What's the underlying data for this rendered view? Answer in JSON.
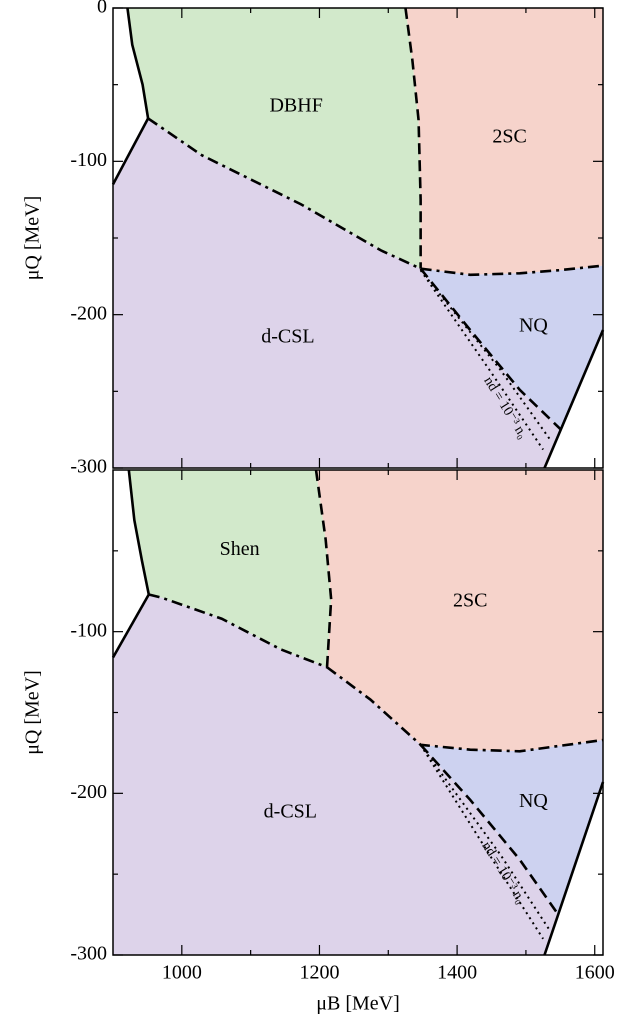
{
  "chart_data": [
    {
      "type": "phase",
      "ylabel": "μQ [MeV]",
      "xlim": [
        900,
        1612
      ],
      "ylim": [
        -300,
        0
      ],
      "xticks": [
        1000,
        1200,
        1400,
        1600
      ],
      "xminorticks": [
        1100,
        1300,
        1500
      ],
      "xtick_labels": false,
      "yticks": [
        0,
        -100,
        -200,
        -300
      ],
      "yminorticks": [
        -50,
        -150,
        -250
      ],
      "regions": [
        {
          "name": "DBHF",
          "color": "#d2e9cb",
          "x": [
            921,
            928,
            943,
            951,
            1029,
            1173,
            1289,
            1347,
            1347,
            1344,
            1335,
            1325
          ],
          "y": [
            0,
            -24,
            -50,
            -72,
            -96,
            -128,
            -158,
            -170,
            -125,
            -73,
            -34,
            0
          ]
        },
        {
          "name": "2SC",
          "color": "#f6d3cb",
          "x": [
            1325,
            1335,
            1344,
            1347,
            1347,
            1419,
            1491,
            1549,
            1612,
            1612
          ],
          "y": [
            0,
            -34,
            -73,
            -125,
            -170,
            -174,
            -173,
            -171,
            -168,
            0
          ]
        },
        {
          "name": "NQ",
          "color": "#cdd2f0",
          "x": [
            1347,
            1419,
            1491,
            1549,
            1612,
            1612,
            1551,
            1491,
            1419
          ],
          "y": [
            -170,
            -174,
            -173,
            -171,
            -168,
            -210,
            -275,
            -249,
            -210
          ]
        },
        {
          "name": "d-CSL",
          "color": "#ddd3ea",
          "x": [
            900,
            951,
            1029,
            1173,
            1289,
            1347,
            1419,
            1491,
            1551,
            1527,
            900
          ],
          "y": [
            -115,
            -72,
            -96,
            -128,
            -158,
            -170,
            -210,
            -249,
            -275,
            -300,
            -300
          ]
        }
      ],
      "lines": [
        {
          "style": "solid",
          "x": [
            921,
            928,
            943,
            951
          ],
          "y": [
            0,
            -24,
            -50,
            -72
          ]
        },
        {
          "style": "solid",
          "x": [
            951,
            900
          ],
          "y": [
            -72,
            -115
          ]
        },
        {
          "style": "dashdot",
          "x": [
            951,
            1029,
            1173,
            1289,
            1347
          ],
          "y": [
            -72,
            -96,
            -128,
            -158,
            -170
          ]
        },
        {
          "style": "dashed",
          "x": [
            1325,
            1335,
            1344,
            1347,
            1347
          ],
          "y": [
            0,
            -34,
            -73,
            -125,
            -170
          ]
        },
        {
          "style": "dashdot",
          "x": [
            1347,
            1419,
            1491,
            1549,
            1612
          ],
          "y": [
            -170,
            -174,
            -173,
            -171,
            -168
          ]
        },
        {
          "style": "dashed",
          "x": [
            1347,
            1419,
            1491,
            1551
          ],
          "y": [
            -170,
            -210,
            -249,
            -275
          ]
        },
        {
          "style": "dotted",
          "x": [
            1347,
            1463,
            1536
          ],
          "y": [
            -171,
            -236,
            -282
          ]
        },
        {
          "style": "dotted",
          "x": [
            1347,
            1450,
            1525
          ],
          "y": [
            -171,
            -238,
            -288
          ]
        },
        {
          "style": "solid",
          "x": [
            1527,
            1612
          ],
          "y": [
            -300,
            -210
          ]
        }
      ],
      "annotation": "nd = 10⁻³ n₀"
    },
    {
      "type": "phase",
      "ylabel": "μQ [MeV]",
      "xlabel": "μB [MeV]",
      "xlim": [
        900,
        1612
      ],
      "ylim": [
        -300,
        0
      ],
      "xticks": [
        1000,
        1200,
        1400,
        1600
      ],
      "xminorticks": [
        1100,
        1300,
        1500
      ],
      "xtick_labels": true,
      "yticks": [
        -100,
        -200,
        -300
      ],
      "yminorticks": [
        -50,
        -150,
        -250
      ],
      "regions": [
        {
          "name": "Shen",
          "color": "#d2e9cb",
          "x": [
            923,
            931,
            942,
            952,
            971,
            1058,
            1144,
            1211,
            1217,
            1209,
            1195
          ],
          "y": [
            0,
            -31,
            -56,
            -77,
            -79,
            -92,
            -111,
            -122,
            -80,
            -43,
            0
          ]
        },
        {
          "name": "2SC",
          "color": "#f6d3cb",
          "x": [
            1195,
            1209,
            1217,
            1211,
            1274,
            1347,
            1419,
            1491,
            1612,
            1612
          ],
          "y": [
            0,
            -43,
            -80,
            -122,
            -142,
            -170,
            -173,
            -174,
            -167,
            0
          ]
        },
        {
          "name": "NQ",
          "color": "#cdd2f0",
          "x": [
            1347,
            1419,
            1491,
            1612,
            1612,
            1547,
            1491,
            1419
          ],
          "y": [
            -170,
            -173,
            -174,
            -167,
            -193,
            -275,
            -241,
            -204
          ]
        },
        {
          "name": "d-CSL",
          "color": "#ddd3ea",
          "x": [
            900,
            952,
            971,
            1058,
            1144,
            1211,
            1274,
            1347,
            1419,
            1491,
            1547,
            1527,
            900
          ],
          "y": [
            -116,
            -77,
            -79,
            -92,
            -111,
            -122,
            -142,
            -170,
            -204,
            -241,
            -275,
            -300,
            -300
          ]
        }
      ],
      "lines": [
        {
          "style": "solid",
          "x": [
            923,
            931,
            942,
            952
          ],
          "y": [
            0,
            -31,
            -56,
            -77
          ]
        },
        {
          "style": "solid",
          "x": [
            952,
            900
          ],
          "y": [
            -77,
            -116
          ]
        },
        {
          "style": "dashdot",
          "x": [
            952,
            971,
            1058,
            1144,
            1211
          ],
          "y": [
            -77,
            -79,
            -92,
            -111,
            -122
          ]
        },
        {
          "style": "dashed",
          "x": [
            1195,
            1209,
            1217,
            1211
          ],
          "y": [
            0,
            -43,
            -80,
            -122
          ]
        },
        {
          "style": "dashdot",
          "x": [
            1211,
            1274,
            1347,
            1419,
            1491,
            1612
          ],
          "y": [
            -122,
            -142,
            -170,
            -173,
            -174,
            -167
          ]
        },
        {
          "style": "dashed",
          "x": [
            1347,
            1419,
            1491,
            1547
          ],
          "y": [
            -170,
            -204,
            -241,
            -275
          ]
        },
        {
          "style": "dotted",
          "x": [
            1347,
            1463,
            1535
          ],
          "y": [
            -170,
            -238,
            -285
          ]
        },
        {
          "style": "dotted",
          "x": [
            1347,
            1450,
            1525
          ],
          "y": [
            -170,
            -240,
            -290
          ]
        },
        {
          "style": "solid",
          "x": [
            1527,
            1612
          ],
          "y": [
            -300,
            -193
          ]
        }
      ],
      "annotation": "nd = 10⁻³ n₀"
    }
  ]
}
